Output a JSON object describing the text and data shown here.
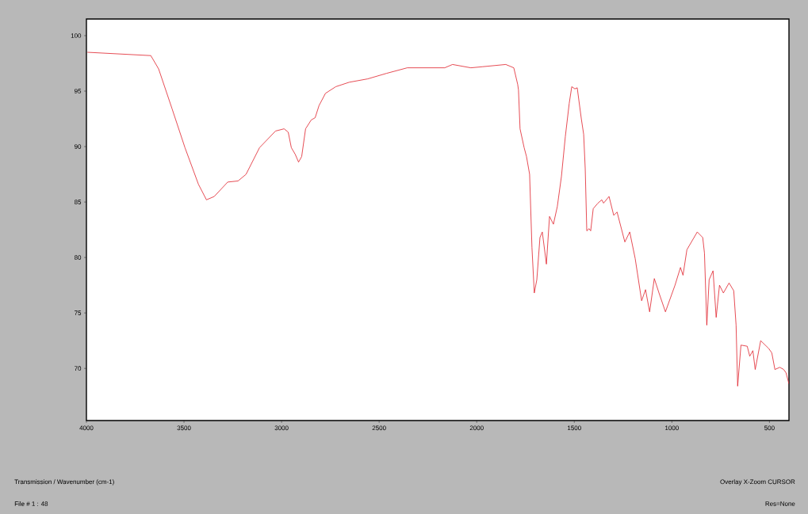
{
  "chart_data": {
    "type": "line",
    "annotations": [
      "Transmission / Wavenumber (cm-1)",
      "Overlay X-Zoom CURSOR",
      "File # 1 : 48",
      "Res=None"
    ],
    "xlim": [
      4000,
      400
    ],
    "ylim": [
      65.3,
      101.5
    ],
    "xticks": [
      4000,
      3500,
      3000,
      2500,
      2000,
      1500,
      1000,
      500
    ],
    "yticks": [
      70,
      75,
      80,
      85,
      90,
      95,
      100
    ],
    "marker": "none",
    "line_style": "solid",
    "series": [
      {
        "color": "#e0202a",
        "x": [
          3995,
          3670,
          3630,
          3561,
          3495,
          3426,
          3385,
          3345,
          3276,
          3223,
          3182,
          3113,
          3031,
          2987,
          2966,
          2950,
          2930,
          2913,
          2897,
          2877,
          2848,
          2828,
          2808,
          2775,
          2722,
          2653,
          2559,
          2462,
          2356,
          2164,
          2124,
          2030,
          1969,
          1851,
          1810,
          1790,
          1786,
          1778,
          1757,
          1745,
          1729,
          1717,
          1705,
          1692,
          1676,
          1664,
          1643,
          1627,
          1607,
          1587,
          1566,
          1546,
          1526,
          1513,
          1497,
          1485,
          1464,
          1452,
          1444,
          1436,
          1424,
          1416,
          1403,
          1379,
          1359,
          1350,
          1322,
          1298,
          1281,
          1241,
          1216,
          1188,
          1155,
          1135,
          1114,
          1090,
          1066,
          1033,
          984,
          956,
          943,
          923,
          870,
          842,
          833,
          821,
          809,
          789,
          773,
          756,
          736,
          707,
          683,
          671,
          663,
          646,
          614,
          601,
          585,
          573,
          545,
          504,
          488,
          472,
          447,
          427,
          415,
          400
        ],
        "values": [
          98.5,
          98.2,
          97.0,
          93.4,
          89.9,
          86.6,
          85.2,
          85.5,
          86.8,
          86.9,
          87.5,
          89.9,
          91.4,
          91.6,
          91.3,
          89.9,
          89.3,
          88.6,
          89.1,
          91.6,
          92.4,
          92.6,
          93.7,
          94.8,
          95.4,
          95.8,
          96.1,
          96.6,
          97.1,
          97.1,
          97.4,
          97.1,
          97.2,
          97.4,
          97.1,
          95.6,
          95.1,
          91.6,
          89.9,
          89.1,
          87.5,
          80.9,
          76.8,
          78.0,
          81.8,
          82.3,
          79.4,
          83.7,
          83.0,
          84.6,
          87.3,
          90.9,
          93.9,
          95.4,
          95.2,
          95.3,
          92.5,
          91.1,
          88.0,
          82.4,
          82.6,
          82.4,
          84.4,
          84.9,
          85.2,
          84.9,
          85.5,
          83.8,
          84.1,
          81.4,
          82.3,
          79.9,
          76.1,
          77.1,
          75.1,
          78.1,
          76.8,
          75.1,
          77.5,
          79.1,
          78.4,
          80.7,
          82.3,
          81.8,
          80.4,
          73.9,
          78.0,
          78.8,
          74.6,
          77.5,
          76.8,
          77.7,
          77.0,
          73.9,
          68.4,
          72.1,
          72.0,
          71.1,
          71.6,
          69.9,
          72.5,
          71.8,
          71.4,
          69.9,
          70.1,
          69.9,
          69.6,
          68.6
        ]
      }
    ]
  }
}
